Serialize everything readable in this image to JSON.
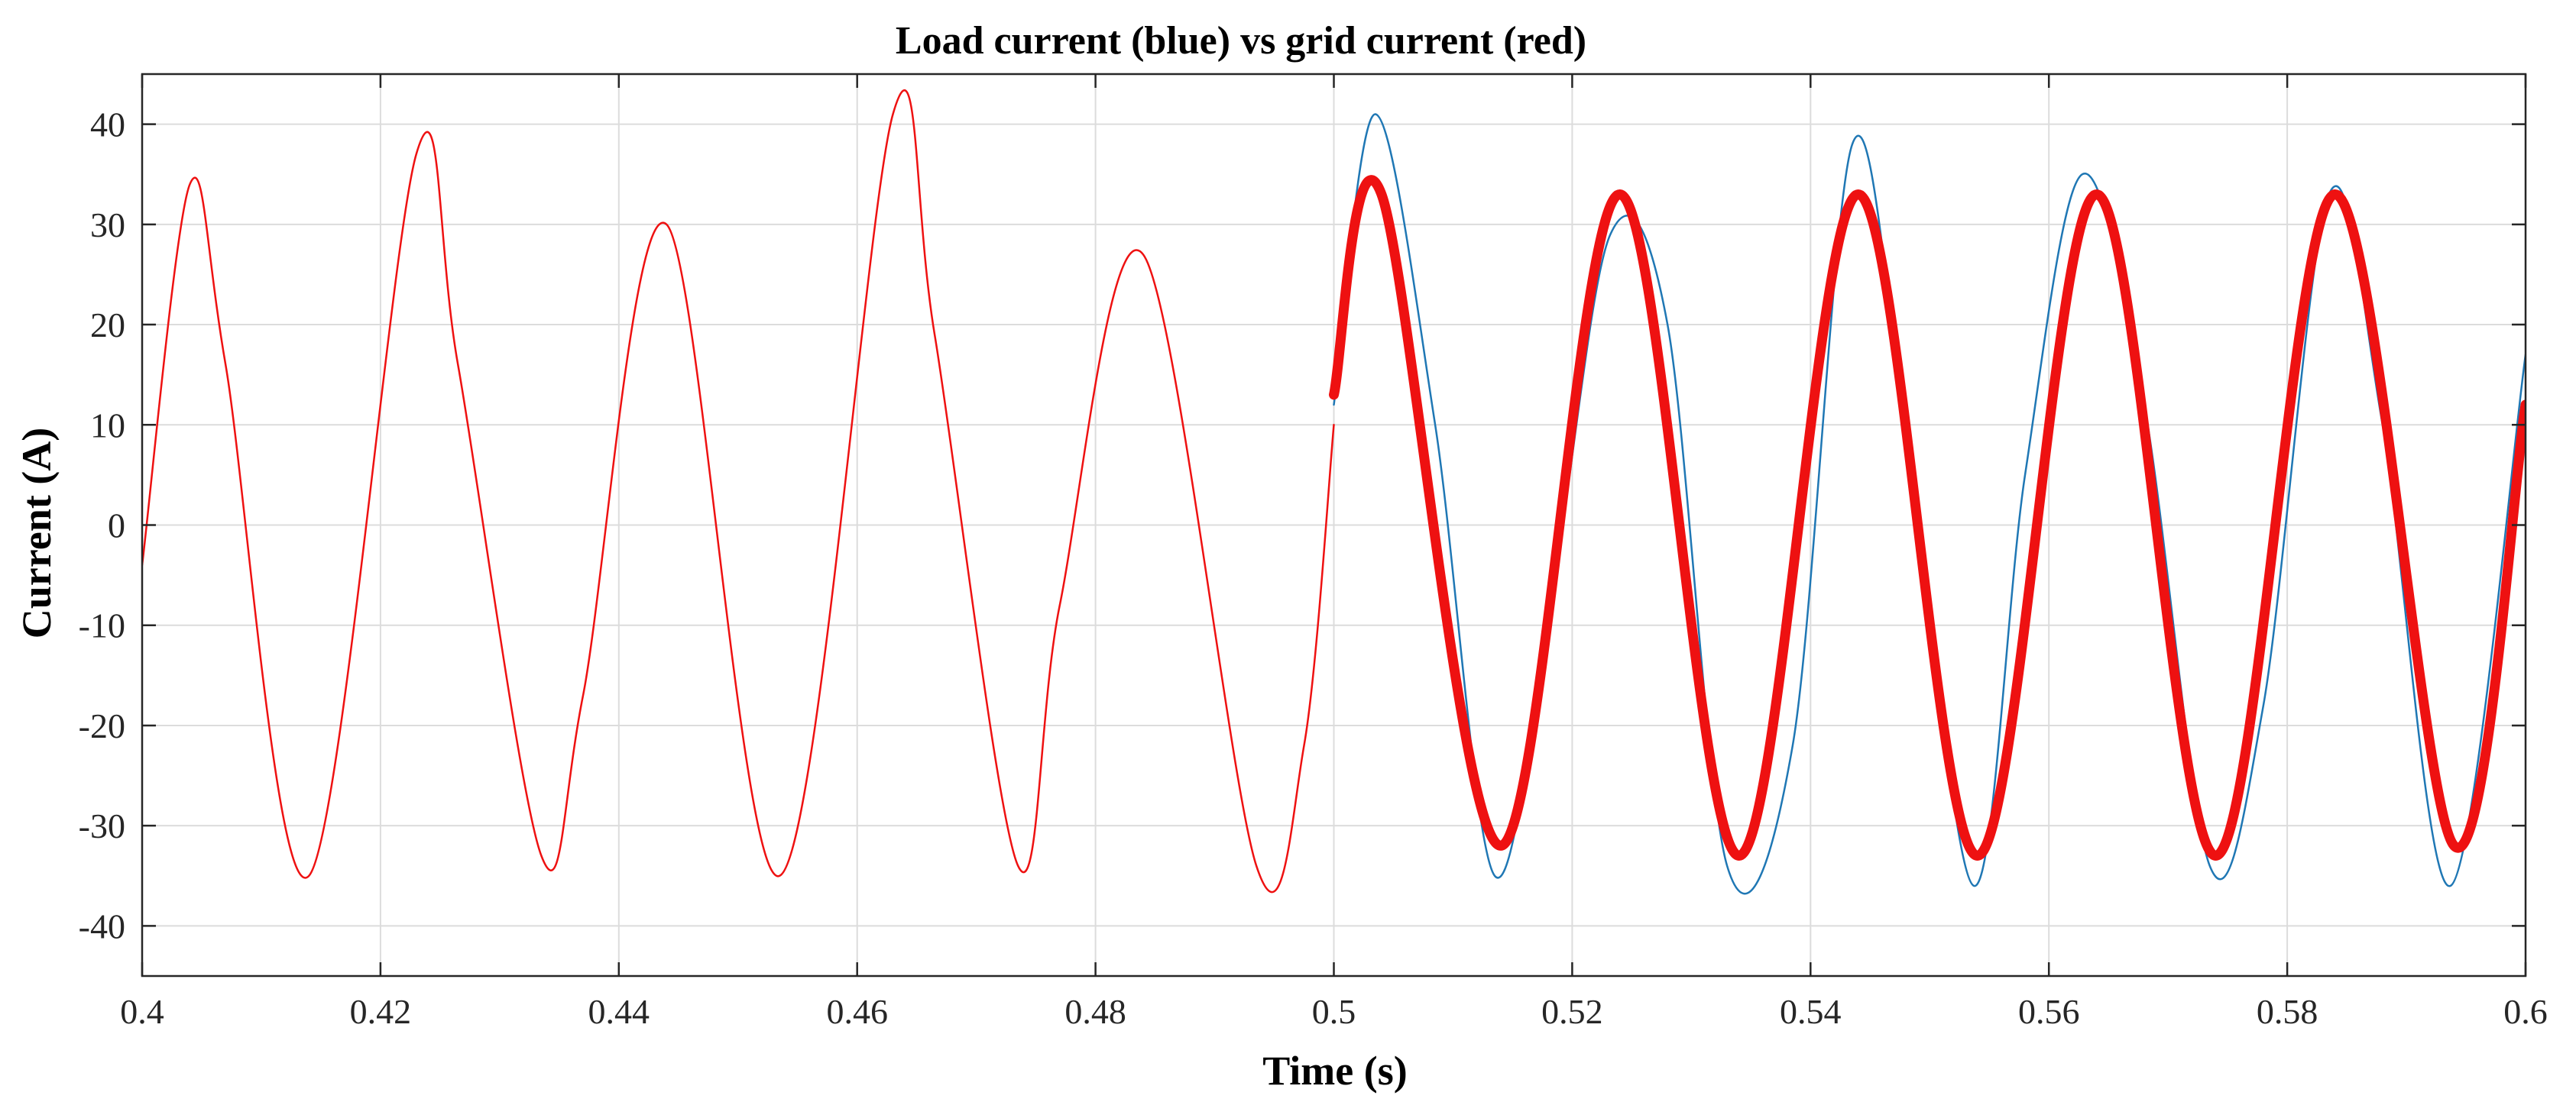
{
  "chart_data": {
    "type": "line",
    "title": "Load current (blue) vs grid current (red)",
    "xlabel": "Time (s)",
    "ylabel": "Current (A)",
    "xlim": [
      0.4,
      0.6
    ],
    "ylim": [
      -45,
      45
    ],
    "x_ticks": [
      0.4,
      0.42,
      0.44,
      0.46,
      0.48,
      0.5,
      0.52,
      0.54,
      0.56,
      0.58,
      0.6
    ],
    "x_tick_labels": [
      "0.4",
      "0.42",
      "0.44",
      "0.46",
      "0.48",
      "0.5",
      "0.52",
      "0.54",
      "0.56",
      "0.58",
      "0.6"
    ],
    "y_ticks": [
      40,
      30,
      20,
      10,
      0,
      -10,
      -20,
      -30,
      -40
    ],
    "y_tick_labels": [
      "40",
      "30",
      "20",
      "10",
      "0",
      "-10",
      "-20",
      "-30",
      "-40"
    ],
    "grid": true,
    "series": [
      {
        "color": "#1f77b4",
        "width": 2.5,
        "x": [
          0.5,
          0.5035,
          0.5085,
          0.5135,
          0.5185,
          0.5232,
          0.528,
          0.533,
          0.5385,
          0.5435,
          0.548,
          0.5537,
          0.558,
          0.5628,
          0.568,
          0.5735,
          0.578,
          0.5835,
          0.588,
          0.5937,
          0.6
        ],
        "y": [
          12,
          41,
          10,
          -35,
          -5,
          29,
          20,
          -34,
          -22,
          38,
          10,
          -36,
          5,
          35,
          12,
          -34,
          -18,
          33,
          10,
          -36,
          17
        ]
      },
      {
        "color": "#ee1111",
        "width": 2.5,
        "x": [
          0.4,
          0.404,
          0.407,
          0.414,
          0.423,
          0.4265,
          0.4335,
          0.437,
          0.444,
          0.4535,
          0.463,
          0.4665,
          0.4735,
          0.477,
          0.484,
          0.4935,
          0.4975,
          0.5
        ],
        "y": [
          -4,
          34,
          16,
          -35,
          37,
          16,
          -33,
          -17,
          30,
          -35,
          41,
          19,
          -34,
          -8,
          27,
          -34,
          -22,
          10
        ]
      },
      {
        "color": "#ee1111",
        "width": 13,
        "x": [
          0.5,
          0.504,
          0.514,
          0.524,
          0.534,
          0.544,
          0.554,
          0.564,
          0.574,
          0.584,
          0.594,
          0.6
        ],
        "y": [
          13,
          33,
          -32,
          33,
          -33,
          33,
          -33,
          33,
          -33,
          33,
          -32,
          12
        ]
      }
    ]
  }
}
